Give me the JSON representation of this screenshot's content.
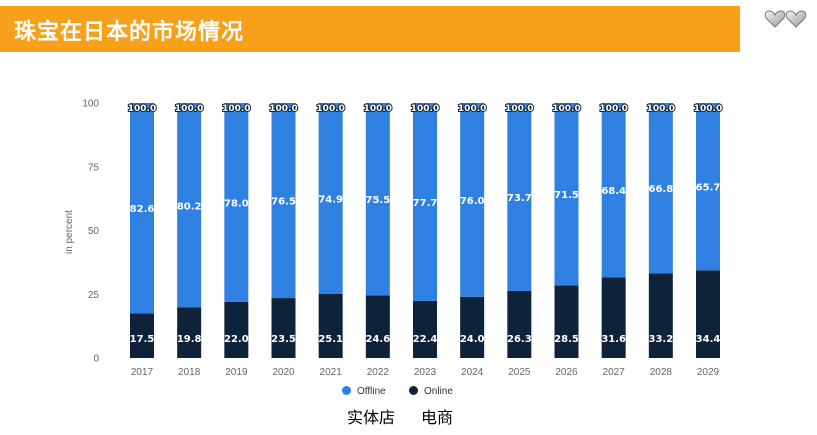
{
  "header": {
    "title": "珠宝在日本的市场情况"
  },
  "icons": {
    "hearts": "double-heart-icon"
  },
  "colors": {
    "header_bg": "#f7a11a",
    "offline": "#2f80e0",
    "online": "#0e2339"
  },
  "chart_data": {
    "type": "bar",
    "stacked": true,
    "categories": [
      "2017",
      "2018",
      "2019",
      "2020",
      "2021",
      "2022",
      "2023",
      "2024",
      "2025",
      "2026",
      "2027",
      "2028",
      "2029"
    ],
    "series": [
      {
        "name": "Online",
        "values": [
          17.5,
          19.8,
          22.0,
          23.5,
          25.1,
          24.6,
          22.4,
          24.0,
          26.3,
          28.5,
          31.6,
          33.2,
          34.4
        ]
      },
      {
        "name": "Offline",
        "values": [
          82.6,
          80.2,
          78.0,
          76.5,
          74.9,
          75.5,
          77.7,
          76.0,
          73.7,
          71.5,
          68.4,
          66.8,
          65.7
        ]
      }
    ],
    "totals": [
      "100.0",
      "100.0",
      "100.0",
      "100.0",
      "100.0",
      "100.0",
      "100.0",
      "100.0",
      "100.0",
      "100.0",
      "100.0",
      "100.0",
      "100.0"
    ],
    "ylabel": "in percent",
    "xlabel": "",
    "ylim": [
      0,
      100
    ],
    "yticks": [
      0,
      25,
      50,
      75,
      100
    ],
    "grid": false,
    "legend_position": "bottom-center"
  },
  "legend": {
    "offline_label": "Offline",
    "online_label": "Online",
    "offline_cn": "实体店",
    "online_cn": "电商"
  }
}
